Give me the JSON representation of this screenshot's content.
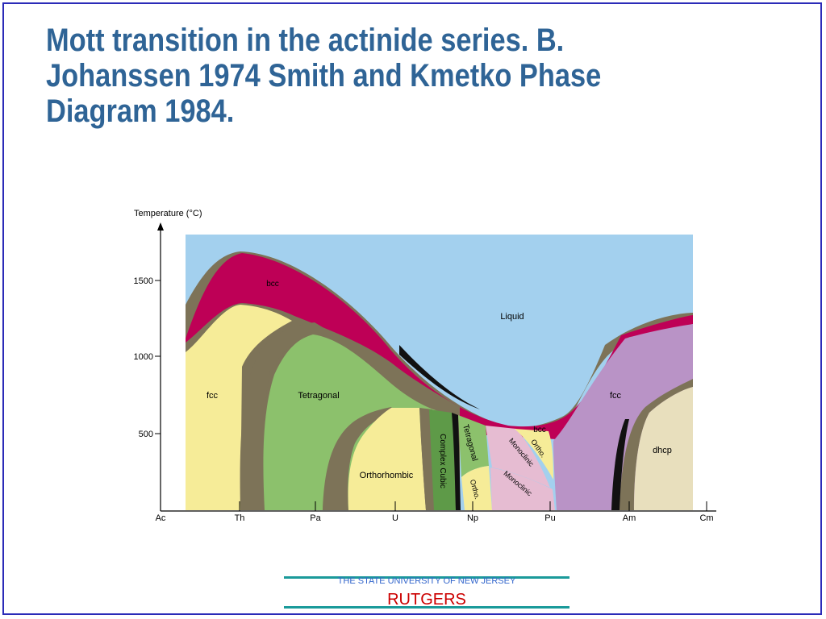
{
  "slide": {
    "title": "Mott transition  in the  actinide series. B.\nJohanssen 1974 Smith and Kmetko Phase\nDiagram 1984."
  },
  "diagram": {
    "y_axis_label": "Temperature (°C)",
    "y_ticks": [
      "1500",
      "1000",
      "500"
    ],
    "x_ticks": [
      "Ac",
      "Th",
      "Pa",
      "U",
      "Np",
      "Pu",
      "Am",
      "Cm"
    ],
    "regions": {
      "liquid": "Liquid",
      "bcc_top": "bcc",
      "bcc_pu": "bcc",
      "fcc_left": "fcc",
      "tetragonal_left": "Tetragonal",
      "orthorhombic": "Orthorhombic",
      "complex_cubic": "Complex Cubic",
      "tetragonal_np": "Tetragonal",
      "ortho_np": "Ortho.",
      "monoclinic_upper": "Monoclinic",
      "monoclinic_lower": "Monoclinic",
      "ortho_pu": "Ortho.",
      "fcc_right": "fcc",
      "dhcp": "dhcp"
    },
    "colors": {
      "liquid": "#a3d0ee",
      "bcc": "#be0056",
      "two_phase": "#7d7358",
      "fcc": "#f6ec98",
      "tetragonal": "#8cc16c",
      "orthorhombic": "#f6ec98",
      "complex_cubic": "#5e9a48",
      "monoclinic": "#e6bcd2",
      "fcc_right": "#b993c6",
      "dhcp": "#e8dfbd"
    }
  },
  "footer": {
    "university": "THE STATE UNIVERSITY OF NEW JERSEY",
    "name": "RUTGERS"
  }
}
